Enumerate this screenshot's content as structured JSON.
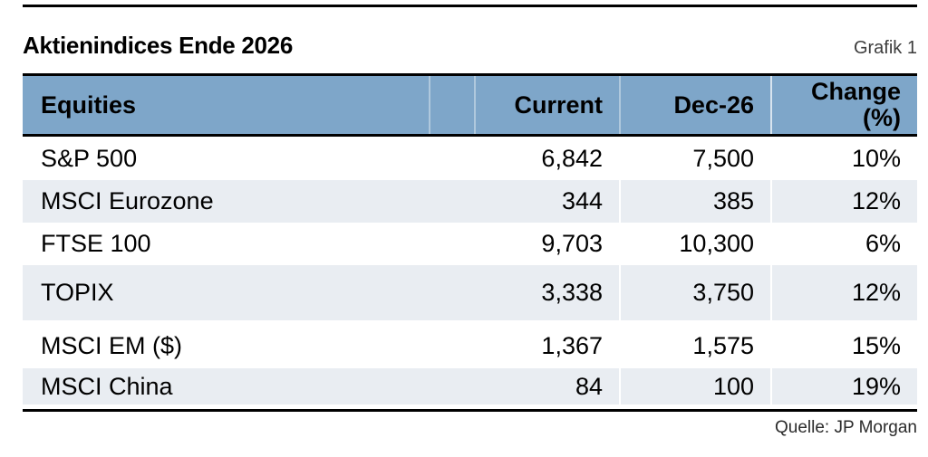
{
  "figure": {
    "title": "Aktienindices Ende 2026",
    "label": "Grafik 1",
    "source": "Quelle: JP Morgan"
  },
  "table": {
    "header": {
      "equities": "Equities",
      "current": "Current",
      "dec26": "Dec-26",
      "change_line1": "Change",
      "change_line2": "(%)"
    },
    "rows": [
      {
        "label": "S&P 500",
        "current": "6,842",
        "dec26": "7,500",
        "change": "10%"
      },
      {
        "label": "MSCI Eurozone",
        "current": "344",
        "dec26": "385",
        "change": "12%"
      },
      {
        "label": "FTSE 100",
        "current": "9,703",
        "dec26": "10,300",
        "change": "6%"
      },
      {
        "label": "TOPIX",
        "current": "3,338",
        "dec26": "3,750",
        "change": "12%"
      },
      {
        "label": "MSCI EM ($)",
        "current": "1,367",
        "dec26": "1,575",
        "change": "15%"
      },
      {
        "label": "MSCI China",
        "current": "84",
        "dec26": "100",
        "change": "19%"
      }
    ]
  },
  "colors": {
    "header_bg": "#7EA6C9",
    "alt_row_bg": "#E9EDF2",
    "rule": "#000000"
  },
  "chart_data": {
    "type": "table",
    "title": "Aktienindices Ende 2026",
    "figure_label": "Grafik 1",
    "source": "Quelle: JP Morgan",
    "columns": [
      "Equities",
      "Current",
      "Dec-26",
      "Change (%)"
    ],
    "rows": [
      [
        "S&P 500",
        6842,
        7500,
        "10%"
      ],
      [
        "MSCI Eurozone",
        344,
        385,
        "12%"
      ],
      [
        "FTSE 100",
        9703,
        10300,
        "6%"
      ],
      [
        "TOPIX",
        3338,
        3750,
        "12%"
      ],
      [
        "MSCI EM ($)",
        1367,
        1575,
        "15%"
      ],
      [
        "MSCI China",
        84,
        100,
        "19%"
      ]
    ],
    "layout": {
      "header_background": "#7EA6C9",
      "alternating_row_shading": true,
      "value_alignment": "right"
    }
  }
}
